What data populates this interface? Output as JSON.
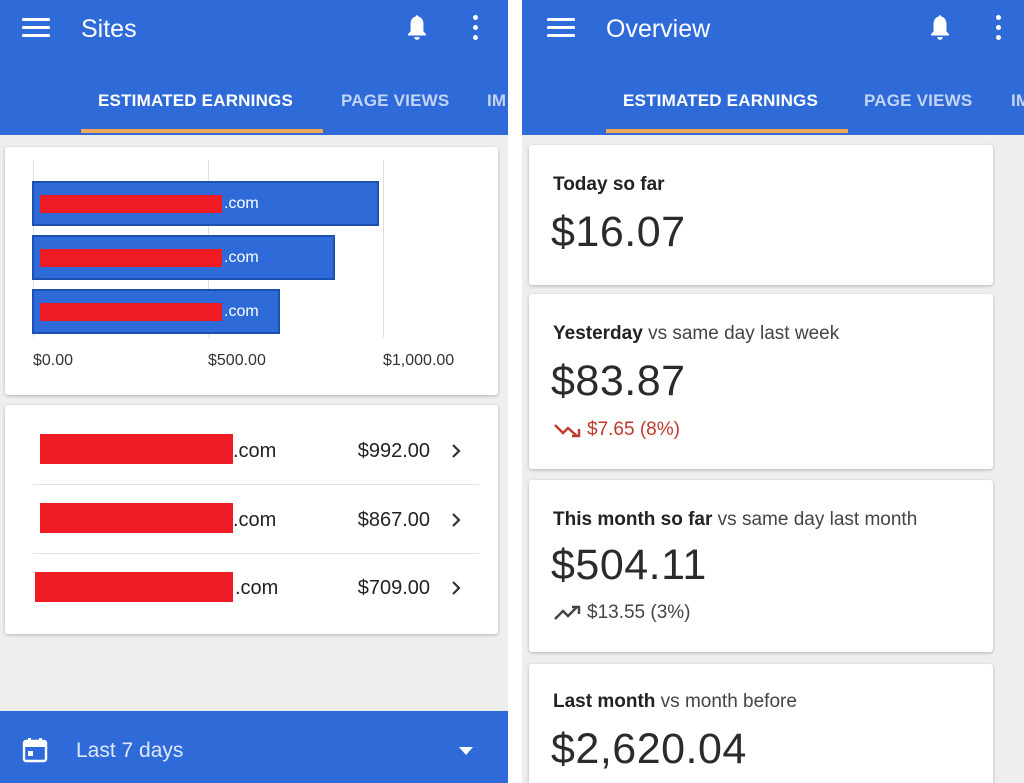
{
  "colors": {
    "app_bar": "#2f6ad9",
    "tab_indicator": "#f0a95b",
    "redaction": "#ee1b24",
    "negative_change": "#c0392b"
  },
  "sites_screen": {
    "title": "Sites",
    "icons": [
      "menu-icon",
      "bell-icon",
      "more-vert-icon",
      "chevron-right-icon",
      "calendar-icon",
      "arrow-drop-down-icon"
    ],
    "tabs": [
      {
        "label": "ESTIMATED EARNINGS",
        "active": true
      },
      {
        "label": "PAGE VIEWS",
        "active": false
      },
      {
        "label": "IM",
        "active": false
      }
    ],
    "chart_data": {
      "type": "bar",
      "orientation": "horizontal",
      "categories": [
        ".com",
        ".com",
        ".com"
      ],
      "values": [
        992.0,
        867.0,
        709.0
      ],
      "x_ticks": [
        "$0.00",
        "$500.00",
        "$1,000.00"
      ],
      "xlim": [
        0,
        1000
      ],
      "grid": true
    },
    "sites": [
      {
        "domain": ".com",
        "amount": "$992.00"
      },
      {
        "domain": ".com",
        "amount": "$867.00"
      },
      {
        "domain": ".com",
        "amount": "$709.00"
      }
    ],
    "bottom_bar": {
      "date_range": "Last 7 days"
    }
  },
  "overview_screen": {
    "title": "Overview",
    "tabs": [
      {
        "label": "ESTIMATED EARNINGS",
        "active": true
      },
      {
        "label": "PAGE VIEWS",
        "active": false
      },
      {
        "label": "IM",
        "active": false
      }
    ],
    "cards": [
      {
        "label_strong": "Today so far",
        "label_rest": "",
        "value": "$16.07",
        "change": null
      },
      {
        "label_strong": "Yesterday",
        "label_rest": " vs same day last week",
        "value": "$83.87",
        "change": {
          "direction": "down",
          "text": "$7.65 (8%)"
        }
      },
      {
        "label_strong": "This month so far",
        "label_rest": " vs same day last month",
        "value": "$504.11",
        "change": {
          "direction": "up",
          "text": "$13.55 (3%)"
        }
      },
      {
        "label_strong": "Last month",
        "label_rest": " vs month before",
        "value": "$2,620.04",
        "change": null
      }
    ]
  }
}
